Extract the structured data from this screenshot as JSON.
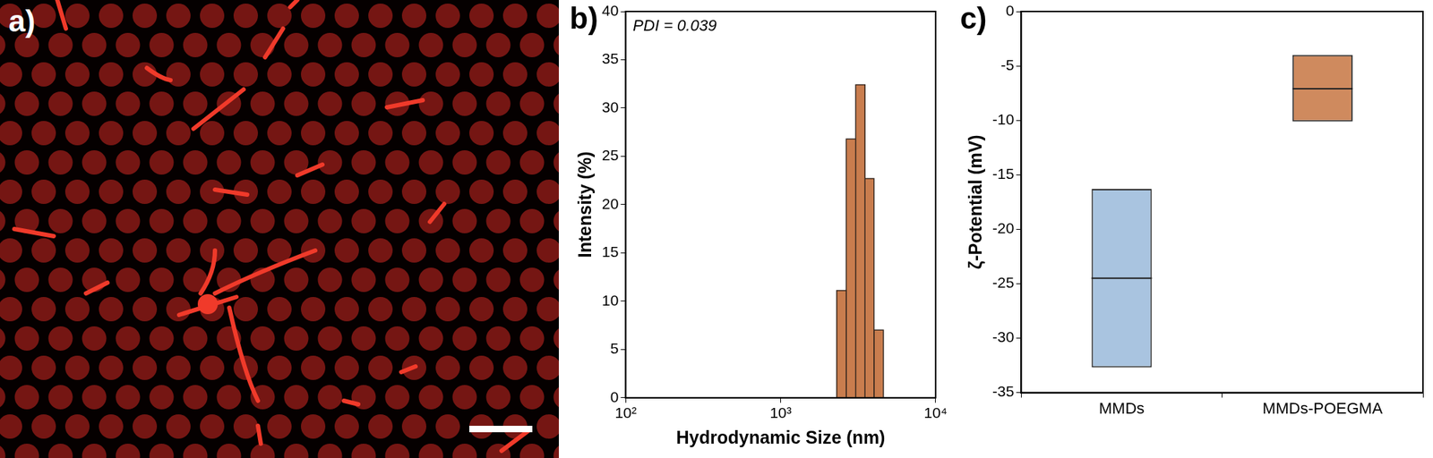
{
  "panel_a": {
    "title": "a)"
  },
  "chart_data": [
    {
      "type": "histogram",
      "title": "b)",
      "annotations": [
        "PDI = 0.039"
      ],
      "x_label": "Hydrodynamic Size (nm)",
      "y_label": "Intensity (%)",
      "bins": [
        2300,
        2650,
        3050,
        3500,
        4000,
        4600
      ],
      "values": [
        11.1,
        26.8,
        32.4,
        22.7,
        7.0
      ],
      "color": "#c97d4e",
      "log": "x",
      "xlim": [
        100,
        10000
      ],
      "xticks": [
        {
          "value": 100,
          "label": "10²"
        },
        {
          "value": 1000,
          "label": "10³"
        },
        {
          "value": 10000,
          "label": "10⁴"
        }
      ],
      "ylim": [
        0,
        40
      ],
      "yticks": [
        0,
        5,
        10,
        15,
        20,
        25,
        30,
        35,
        40
      ],
      "grid": false
    },
    {
      "type": "box",
      "title": "c)",
      "y_label": "ζ-Potential (mV)",
      "categories": [
        "MMDs",
        "MMDs-POEGMA"
      ],
      "values": [
        -24.5,
        -7.1
      ],
      "ranges": [
        [
          -32.7,
          -16.3
        ],
        [
          -10.1,
          -4.0
        ]
      ],
      "colors": [
        "#a9c4e0",
        "#cf8a5e"
      ],
      "ylim": [
        -35,
        0
      ],
      "yticks": [
        -35,
        -30,
        -25,
        -20,
        -15,
        -10,
        -5,
        0
      ],
      "grid": false
    }
  ]
}
